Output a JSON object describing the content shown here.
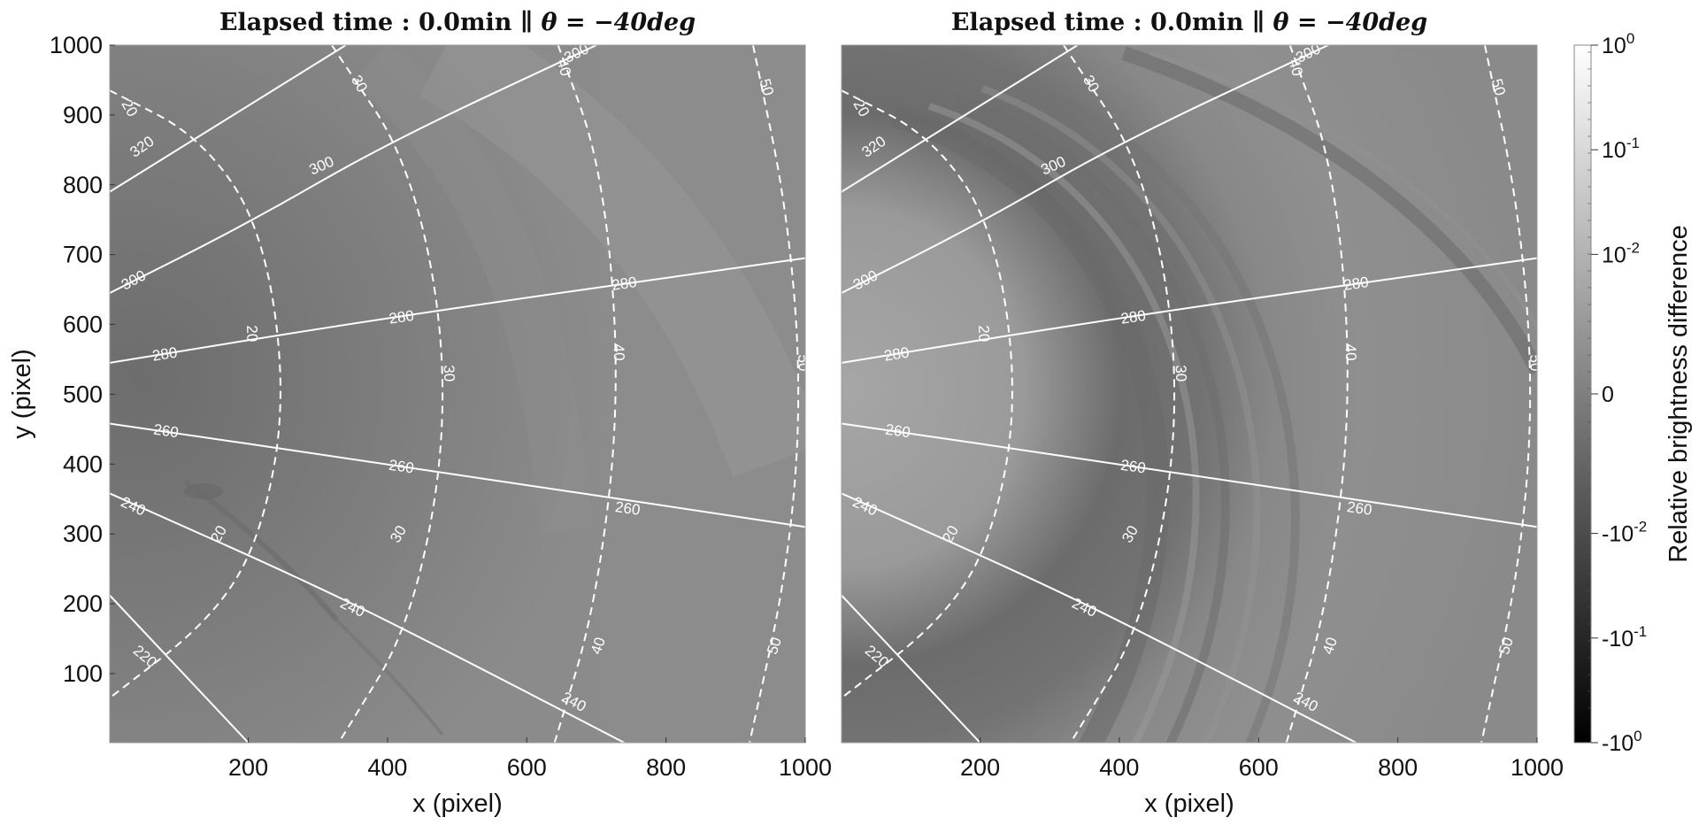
{
  "chart_data": [
    {
      "type": "heatmap",
      "panel": "left",
      "title_prefix": "Elapsed time :",
      "title_time": "0.0min",
      "title_sep": "∥",
      "title_theta": "θ = −40deg",
      "xlabel": "x (pixel)",
      "ylabel": "y (pixel)",
      "xlim": [
        1,
        1000
      ],
      "ylim": [
        1,
        1000
      ],
      "x_ticks": [
        200,
        400,
        600,
        800,
        1000
      ],
      "y_ticks": [
        100,
        200,
        300,
        400,
        500,
        600,
        700,
        800,
        900,
        1000
      ],
      "grid": false
    },
    {
      "type": "heatmap",
      "panel": "right",
      "title_prefix": "Elapsed time :",
      "title_time": "0.0min",
      "title_sep": "∥",
      "title_theta": "θ = −40deg",
      "xlabel": "x (pixel)",
      "ylabel": "",
      "xlim": [
        1,
        1000
      ],
      "ylim": [
        1,
        1000
      ],
      "x_ticks": [
        200,
        400,
        600,
        800,
        1000
      ],
      "y_ticks": [],
      "grid": false
    }
  ],
  "colorbar": {
    "label": "Relative brightness difference",
    "ticks": [
      {
        "base": "10",
        "exp": "0",
        "value": 1
      },
      {
        "base": "10",
        "exp": "-1",
        "value": 0.1
      },
      {
        "base": "10",
        "exp": "-2",
        "value": 0.01
      },
      {
        "base": "0",
        "exp": "",
        "value": 0
      },
      {
        "base": "-10",
        "exp": "-2",
        "value": -0.01
      },
      {
        "base": "-10",
        "exp": "-1",
        "value": -0.1
      },
      {
        "base": "-10",
        "exp": "0",
        "value": -1
      }
    ],
    "colormap": "gray"
  },
  "overlay": {
    "latitude_contours_deg": [
      20,
      30,
      40,
      50
    ],
    "longitude_contours_deg": [
      220,
      240,
      260,
      280,
      300,
      320
    ],
    "latitude_style": "dashed",
    "longitude_style": "solid",
    "line_color": "#ffffff"
  }
}
